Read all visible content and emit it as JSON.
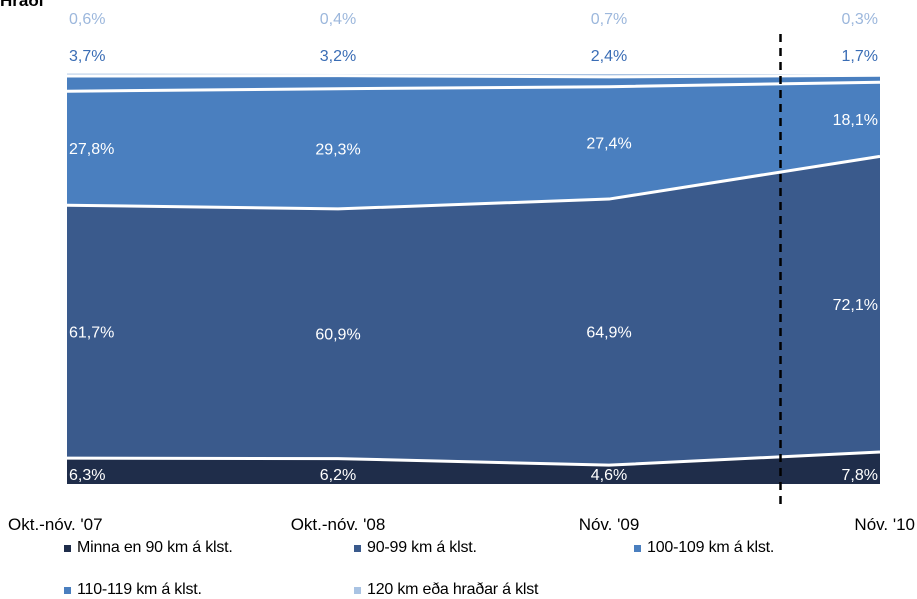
{
  "title_fragment": "Hraði",
  "chart_data": {
    "type": "area",
    "stacked": true,
    "percent": true,
    "categories": [
      "Okt.-nóv. '07",
      "Okt.-nóv. '08",
      "Nóv. '09",
      "Nóv. '10"
    ],
    "series": [
      {
        "name": "Minna en 90 km á klst.",
        "values": [
          6.3,
          6.2,
          4.6,
          7.8
        ],
        "labels": [
          "6,3%",
          "6,2%",
          "4,6%",
          "7,8%"
        ],
        "color": "#1f2d4a",
        "label_color": "#ffffff"
      },
      {
        "name": "90-99 km á klst.",
        "values": [
          61.7,
          60.9,
          64.9,
          72.1
        ],
        "labels": [
          "61,7%",
          "60,9%",
          "64,9%",
          "72,1%"
        ],
        "color": "#3a5a8c",
        "label_color": "#ffffff"
      },
      {
        "name": "100-109 km á klst.",
        "values": [
          27.8,
          29.3,
          27.4,
          18.1
        ],
        "labels": [
          "27,8%",
          "29,3%",
          "27,4%",
          "18,1%"
        ],
        "color": "#4a7fbf",
        "label_color": "#ffffff"
      },
      {
        "name": "110-119 km á klst.",
        "values": [
          3.7,
          3.2,
          2.4,
          1.7
        ],
        "labels": [
          "3,7%",
          "3,2%",
          "2,4%",
          "1,7%"
        ],
        "color": "#4a7fbf",
        "label_color": "#3a6db5"
      },
      {
        "name": "120 km eða hraðar á klst",
        "values": [
          0.6,
          0.4,
          0.7,
          0.3
        ],
        "labels": [
          "0,6%",
          "0,4%",
          "0,7%",
          "0,3%"
        ],
        "color": "#a9c3e3",
        "label_color": "#9cb7dc"
      }
    ],
    "ylim": [
      0,
      100
    ],
    "separator_between": [
      "Nóv. '09",
      "Nóv. '10"
    ],
    "legend_position": "bottom"
  }
}
